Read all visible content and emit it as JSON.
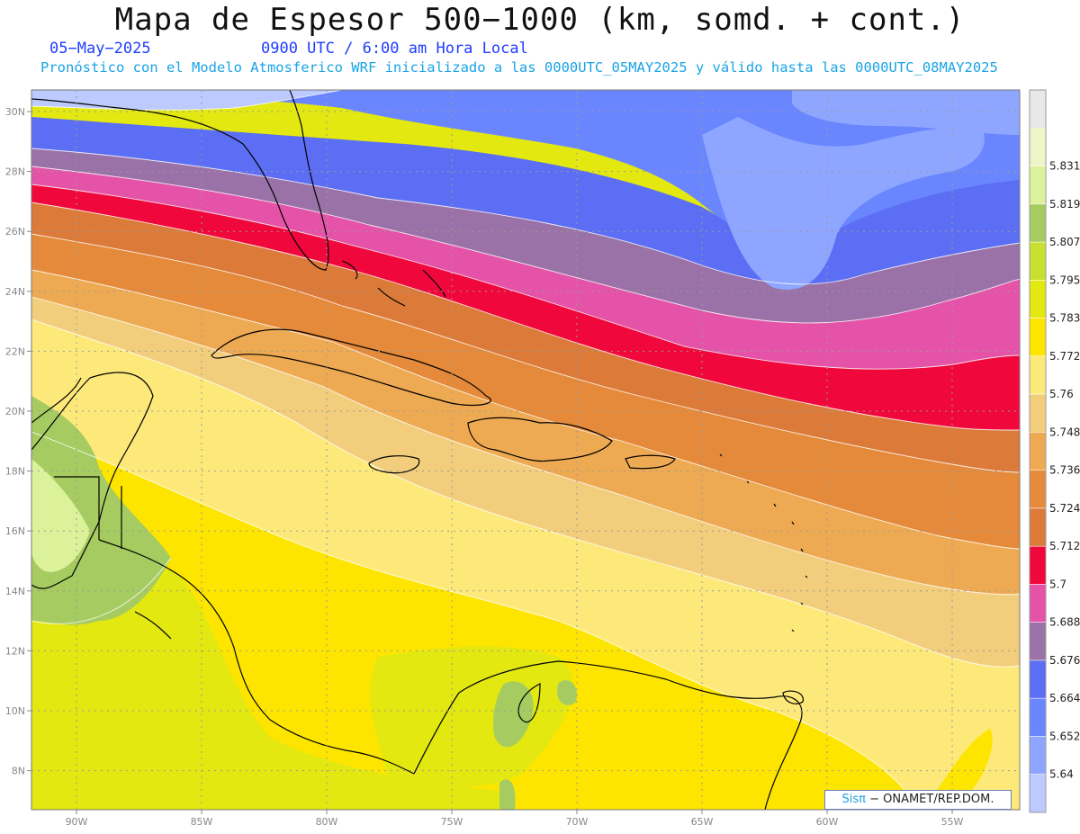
{
  "header": {
    "title": "Mapa de Espesor 500−1000 (km, somd. + cont.)",
    "date": "05−May−2025",
    "time": "0900 UTC / 6:00 am Hora Local",
    "description": "Pronóstico con el Modelo Atmosferico WRF inicializado a las 0000UTC_05MAY2025 y válido hasta las  0000UTC_08MAY2025"
  },
  "map": {
    "lat_ticks": [
      "30N",
      "28N",
      "26N",
      "24N",
      "22N",
      "20N",
      "18N",
      "16N",
      "14N",
      "12N",
      "10N",
      "8N"
    ],
    "lon_ticks": [
      "90W",
      "85W",
      "80W",
      "75W",
      "70W",
      "65W",
      "60W",
      "55W"
    ]
  },
  "colorbar": {
    "labels": [
      "5.64",
      "5.652",
      "5.664",
      "5.676",
      "5.688",
      "5.7",
      "5.712",
      "5.724",
      "5.736",
      "5.748",
      "5.76",
      "5.772",
      "5.783",
      "5.795",
      "5.807",
      "5.819",
      "5.831"
    ],
    "colors": [
      "#bccaff",
      "#8ea6ff",
      "#6a86ff",
      "#5b6ef4",
      "#9a72a8",
      "#e553a8",
      "#f0083c",
      "#dc7a3a",
      "#e48a3a",
      "#eeaa52",
      "#f2cd7c",
      "#fde97a",
      "#fde500",
      "#e2e810",
      "#c8e030",
      "#a6cb60",
      "#dcf29a",
      "#eef6c8"
    ],
    "top_color": "#e8e8e8"
  },
  "credit": {
    "brand": "Sis",
    "pi": "π",
    "text": " − ONAMET/REP.DOM."
  }
}
